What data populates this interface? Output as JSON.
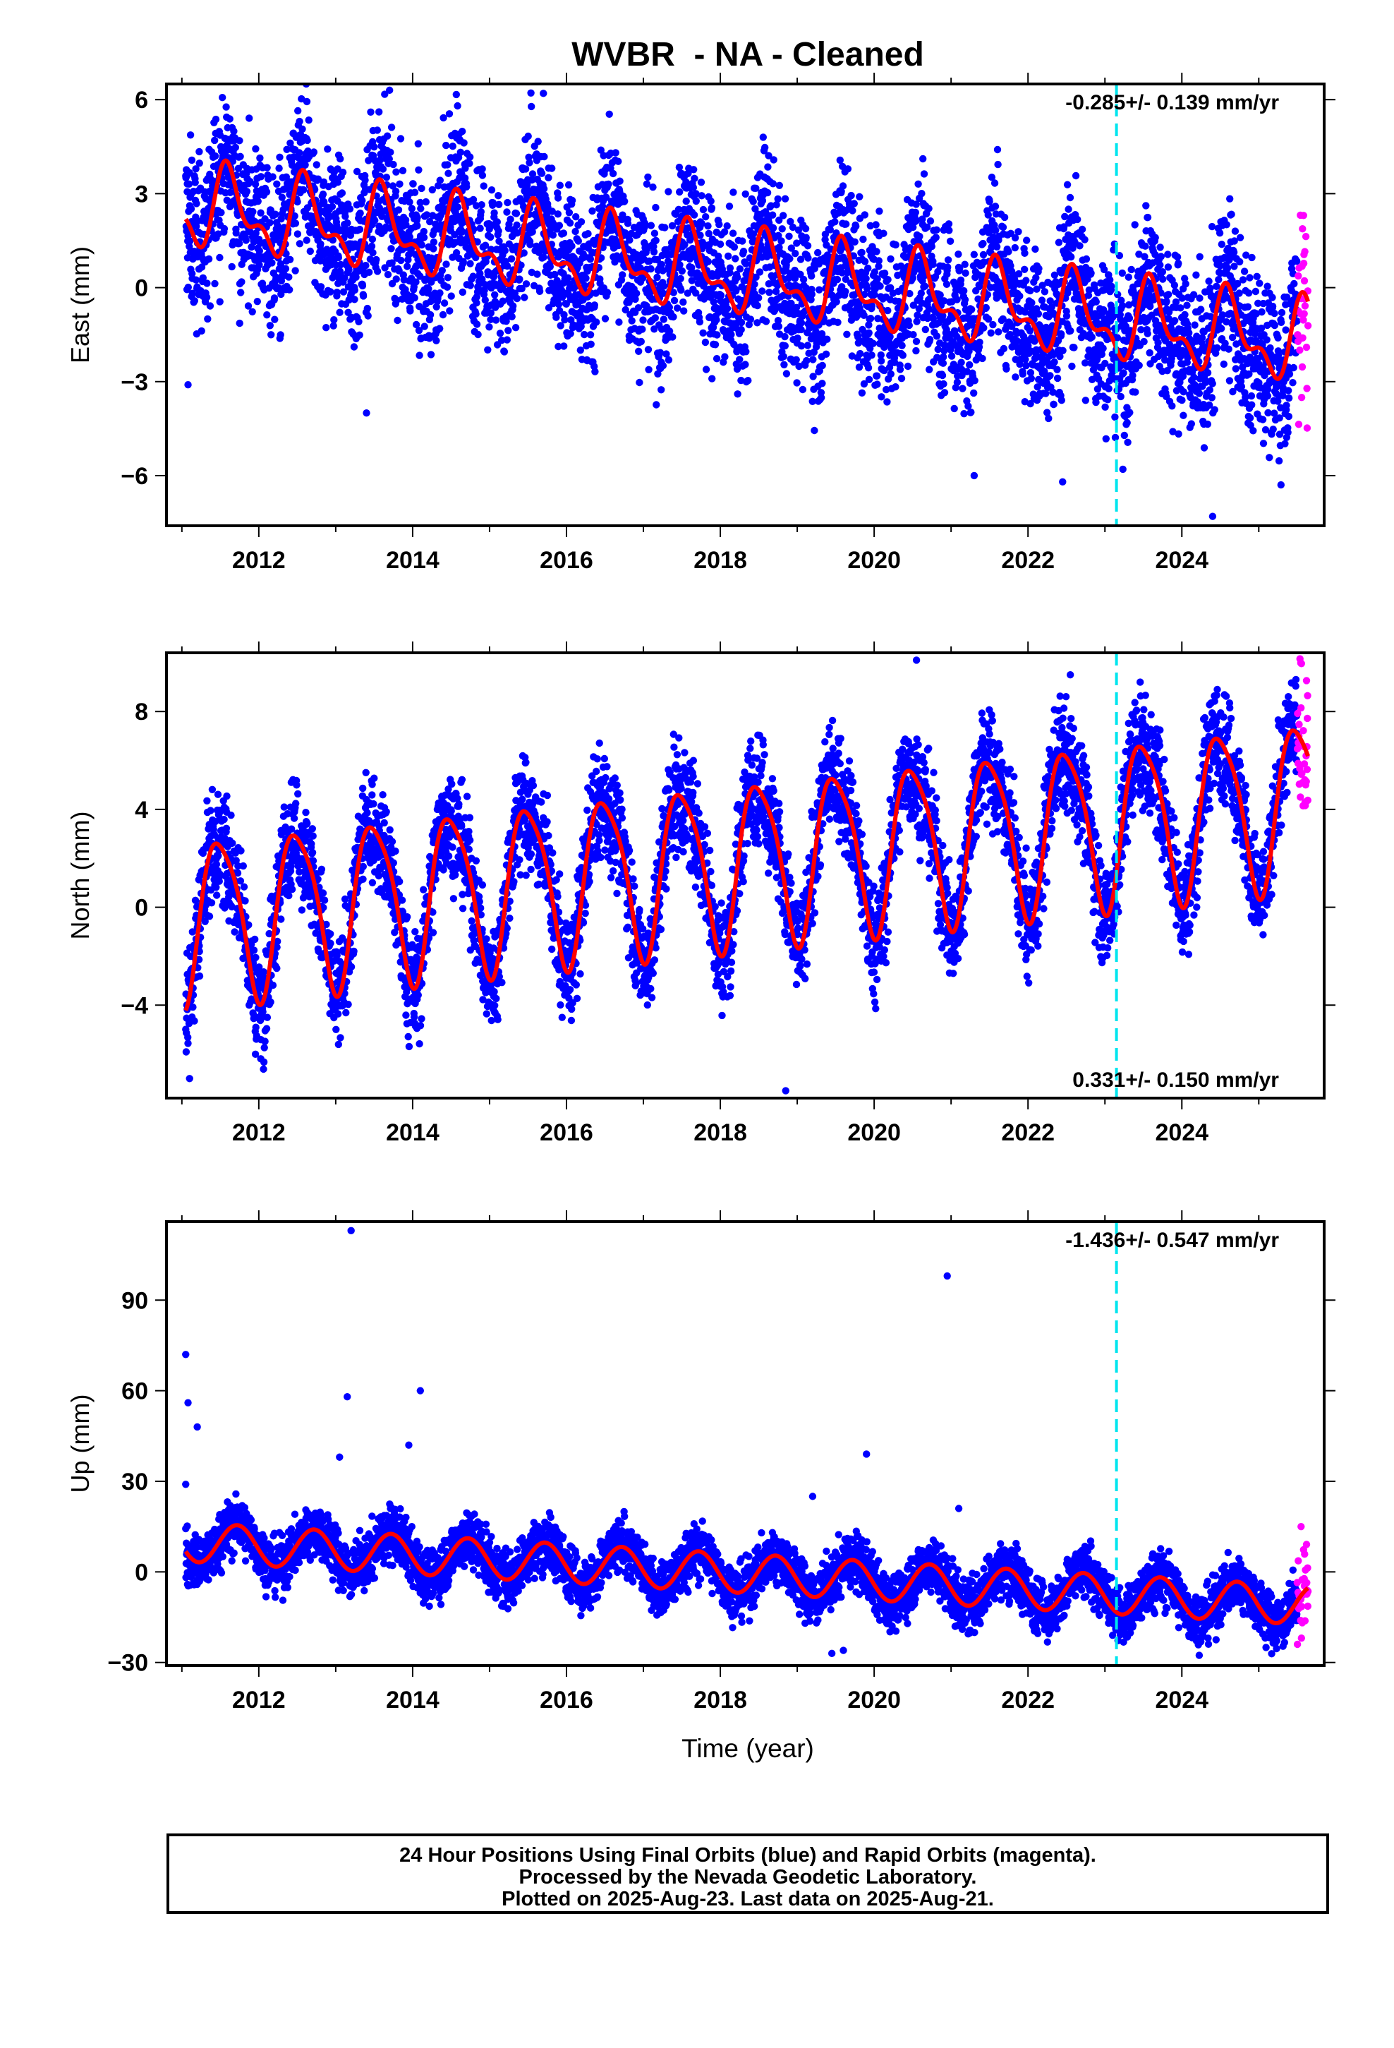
{
  "title": "WVBR  - NA - Cleaned",
  "colors": {
    "final_orbits": "#0000ff",
    "rapid_orbits": "#ff00ff",
    "model_fit": "#ff0000",
    "equipment_change": "#00e5ee"
  },
  "xlabel": "Time (year)",
  "x_tick_labels": [
    "2012",
    "2014",
    "2016",
    "2018",
    "2020",
    "2022",
    "2024"
  ],
  "caption": [
    "24 Hour Positions Using Final Orbits (blue) and Rapid Orbits (magenta).",
    "Processed by the Nevada Geodetic Laboratory.",
    "Plotted on 2025-Aug-23. Last data on 2025-Aug-21."
  ],
  "chart_data": [
    {
      "type": "scatter",
      "component": "east",
      "ylabel": "East (mm)",
      "rate_label": "-0.285+/- 0.139 mm/yr",
      "rate_position": "top-right",
      "xlim": [
        2010.8,
        2025.85
      ],
      "ylim": [
        -7.6,
        6.5
      ],
      "yticks": [
        -6,
        -3,
        0,
        3,
        6
      ],
      "ytick_labels": [
        "−6",
        "−3",
        "0",
        "3",
        "6"
      ],
      "time_range": [
        2011.05,
        2025.64
      ],
      "rapid_start": 2025.5,
      "equipment_change_epoch": 2023.15,
      "model": {
        "offset_2011": 2.6,
        "rate_mm_per_yr": -0.3,
        "annual_amp": 1.1,
        "annual_phase_yr": 0.62,
        "semiannual_amp": 0.6,
        "semiannual_phase_yr": 0.05
      },
      "scatter_sd_mm": 1.3,
      "outliers": [
        [
          2011.08,
          -3.1
        ],
        [
          2013.4,
          -4.0
        ],
        [
          2013.7,
          6.3
        ],
        [
          2015.7,
          6.2
        ],
        [
          2021.3,
          -6.0
        ],
        [
          2022.45,
          -6.2
        ],
        [
          2024.4,
          -7.3
        ]
      ]
    },
    {
      "type": "scatter",
      "component": "north",
      "ylabel": "North (mm)",
      "rate_label": "0.331+/- 0.150 mm/yr",
      "rate_position": "bottom-right",
      "xlim": [
        2010.8,
        2025.85
      ],
      "ylim": [
        -7.8,
        10.4
      ],
      "yticks": [
        -4,
        0,
        4,
        8
      ],
      "ytick_labels": [
        "−4",
        "0",
        "4",
        "8"
      ],
      "time_range": [
        2011.05,
        2025.64
      ],
      "rapid_start": 2025.5,
      "equipment_change_epoch": 2023.15,
      "model": {
        "offset_2011": -0.5,
        "rate_mm_per_yr": 0.33,
        "annual_amp": 3.3,
        "annual_phase_yr": 0.5,
        "semiannual_amp": 0.6,
        "semiannual_phase_yr": 0.3
      },
      "scatter_sd_mm": 1.1,
      "outliers": [
        [
          2011.1,
          -7.0
        ],
        [
          2018.85,
          -7.5
        ],
        [
          2020.55,
          10.1
        ],
        [
          2022.55,
          9.5
        ]
      ]
    },
    {
      "type": "scatter",
      "component": "up",
      "ylabel": "Up (mm)",
      "rate_label": "-1.436+/- 0.547 mm/yr",
      "rate_position": "top-right",
      "xlim": [
        2010.8,
        2025.85
      ],
      "ylim": [
        -31,
        116
      ],
      "yticks": [
        -30,
        0,
        30,
        60,
        90
      ],
      "ytick_labels": [
        "−30",
        "0",
        "30",
        "60",
        "90"
      ],
      "time_range": [
        2011.05,
        2025.64
      ],
      "rapid_start": 2025.5,
      "equipment_change_epoch": 2023.15,
      "model": {
        "offset_2011": 10,
        "rate_mm_per_yr": -1.44,
        "annual_amp": 6.5,
        "annual_phase_yr": 0.72,
        "semiannual_amp": 0,
        "semiannual_phase_yr": 0
      },
      "scatter_sd_mm": 4.5,
      "outliers": [
        [
          2011.05,
          72
        ],
        [
          2011.08,
          56
        ],
        [
          2011.2,
          48
        ],
        [
          2011.05,
          29
        ],
        [
          2013.2,
          113
        ],
        [
          2013.05,
          38
        ],
        [
          2013.15,
          58
        ],
        [
          2013.95,
          42
        ],
        [
          2014.1,
          60
        ],
        [
          2019.2,
          25
        ],
        [
          2019.45,
          -27
        ],
        [
          2019.6,
          -26
        ],
        [
          2019.9,
          39
        ],
        [
          2020.95,
          98
        ],
        [
          2021.1,
          21
        ],
        [
          2023.1,
          -21
        ],
        [
          2025.55,
          15
        ]
      ]
    }
  ]
}
